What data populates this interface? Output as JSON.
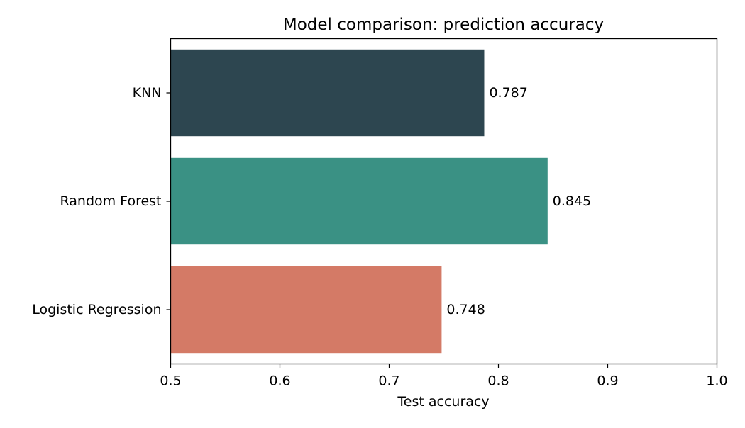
{
  "chart_data": {
    "type": "bar",
    "orientation": "horizontal",
    "title": "Model comparison: prediction accuracy",
    "xlabel": "Test accuracy",
    "ylabel": "",
    "categories": [
      "KNN",
      "Random Forest",
      "Logistic Regression"
    ],
    "values": [
      0.787,
      0.845,
      0.748
    ],
    "value_labels": [
      "0.787",
      "0.845",
      "0.748"
    ],
    "colors": [
      "#2d4650",
      "#3a9184",
      "#d47a66"
    ],
    "xlim": [
      0.5,
      1.0
    ],
    "x_ticks": [
      0.5,
      0.6,
      0.7,
      0.8,
      0.9,
      1.0
    ],
    "x_tick_labels": [
      "0.5",
      "0.6",
      "0.7",
      "0.8",
      "0.9",
      "1.0"
    ],
    "grid": false,
    "legend": "none"
  }
}
